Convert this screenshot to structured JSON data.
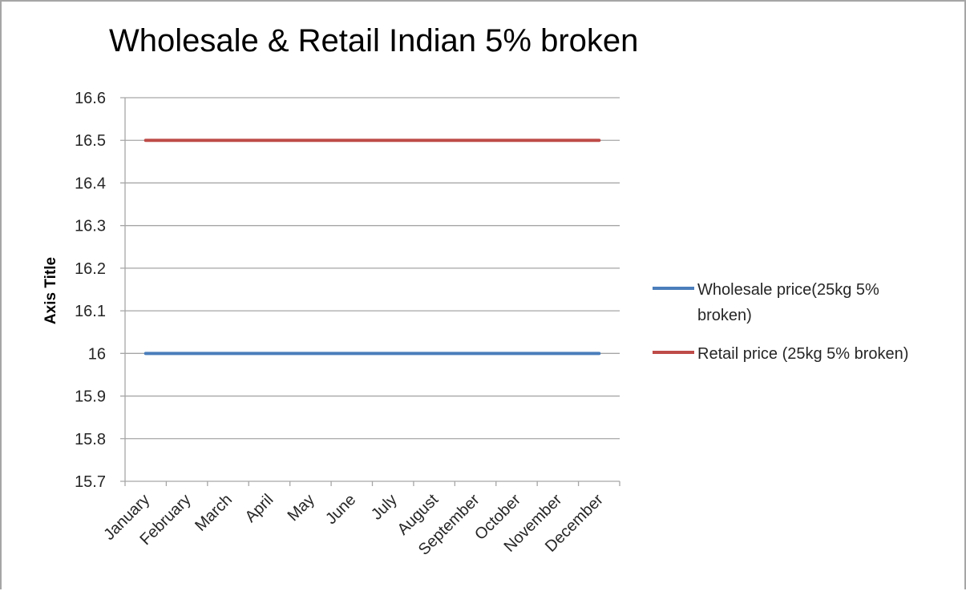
{
  "chart_data": {
    "type": "line",
    "title": "Wholesale & Retail Indian 5% broken",
    "xlabel": "",
    "ylabel": "Axis Title",
    "categories": [
      "January",
      "February",
      "March",
      "April",
      "May",
      "June",
      "July",
      "August",
      "September",
      "October",
      "November",
      "December"
    ],
    "ylim": [
      15.7,
      16.6
    ],
    "yticks": [
      "16.6",
      "16.5",
      "16.4",
      "16.3",
      "16.2",
      "16.1",
      "16",
      "15.9",
      "15.8",
      "15.7"
    ],
    "grid": true,
    "legend_position": "right",
    "series": [
      {
        "name": "Wholesale price(25kg 5% broken)",
        "legend_lines": [
          "Wholesale price(25kg 5%",
          "broken)"
        ],
        "color": "#4a7ebb",
        "values": [
          16,
          16,
          16,
          16,
          16,
          16,
          16,
          16,
          16,
          16,
          16,
          16
        ]
      },
      {
        "name": "Retail price (25kg 5% broken)",
        "legend_lines": [
          "Retail price (25kg 5% broken)"
        ],
        "color": "#be4b48",
        "values": [
          16.5,
          16.5,
          16.5,
          16.5,
          16.5,
          16.5,
          16.5,
          16.5,
          16.5,
          16.5,
          16.5,
          16.5
        ]
      }
    ]
  }
}
